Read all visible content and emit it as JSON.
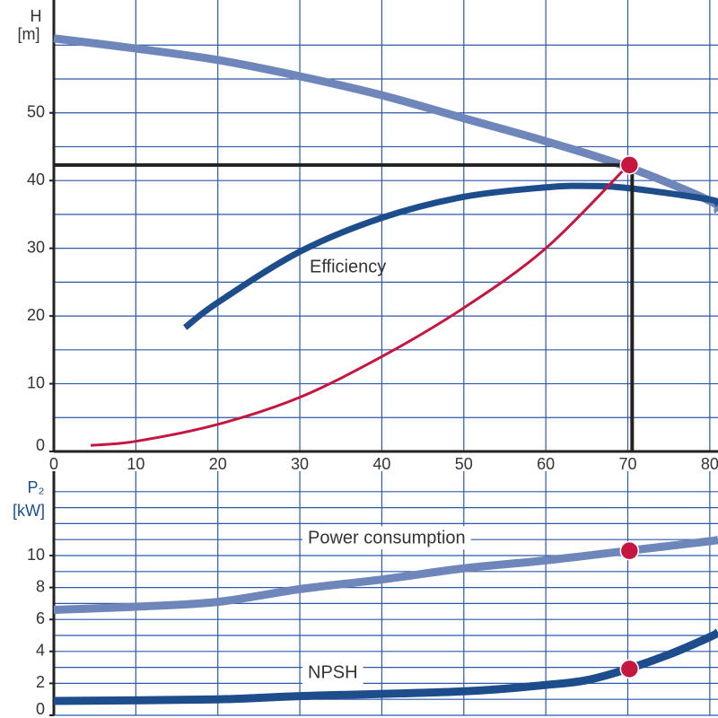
{
  "chart_data": [
    {
      "type": "line",
      "ylabel": "H",
      "yunit": "[m]",
      "xlim": [
        0,
        81
      ],
      "ylim": [
        0,
        66
      ],
      "xticks": [
        0,
        10,
        20,
        30,
        40,
        50,
        60,
        70,
        80
      ],
      "yticks": [
        0,
        10,
        20,
        30,
        40,
        50
      ],
      "minor_yticks": [
        5,
        15,
        25,
        35,
        45,
        55,
        60
      ],
      "grid": true,
      "grid_color": "#2c58a6",
      "series": [
        {
          "color": "#6f86ba",
          "x": [
            0,
            10,
            20,
            30,
            40,
            50,
            60,
            70,
            80,
            81
          ],
          "values": [
            61,
            59.5,
            57.8,
            55.4,
            52.6,
            49.2,
            45.8,
            42,
            37,
            35.5
          ]
        },
        {
          "name": "Efficiency",
          "color": "#1d4d8b",
          "x": [
            16,
            20,
            30,
            40,
            50,
            60,
            65,
            70,
            80,
            81
          ],
          "values": [
            18.3,
            22,
            29.5,
            34.5,
            37.6,
            39,
            39.2,
            38.9,
            37.2,
            36.5
          ]
        },
        {
          "color": "#c4163f",
          "x": [
            4.5,
            10,
            20,
            30,
            40,
            50,
            60,
            70
          ],
          "values": [
            0.9,
            1.5,
            4,
            8,
            14,
            21.2,
            30,
            42.2
          ]
        }
      ],
      "operating_point": {
        "x": 70.2,
        "y": 42.3,
        "color": "#c4163f"
      }
    },
    {
      "type": "line",
      "ylabel": "P₂",
      "yunit": "[kW]",
      "xlim": [
        0,
        81
      ],
      "ylim": [
        0,
        15
      ],
      "yticks": [
        0,
        2,
        4,
        6,
        8,
        10
      ],
      "minor_yticks": [
        1,
        3,
        5,
        7,
        9,
        11,
        12,
        13,
        14
      ],
      "grid": true,
      "grid_color": "#2c58a6",
      "series": [
        {
          "name": "Power consumption",
          "color": "#6f86ba",
          "x": [
            0,
            10,
            20,
            30,
            40,
            50,
            60,
            70,
            80,
            81
          ],
          "values": [
            6.6,
            6.8,
            7.1,
            7.9,
            8.5,
            9.2,
            9.7,
            10.3,
            10.9,
            11
          ]
        },
        {
          "name": "NPSH",
          "color": "#1d4d8b",
          "x": [
            0,
            20,
            30,
            50,
            60,
            65,
            70,
            75,
            80,
            81
          ],
          "values": [
            0.9,
            1.0,
            1.2,
            1.5,
            1.9,
            2.2,
            2.9,
            3.8,
            4.9,
            5.2
          ]
        }
      ],
      "points": [
        {
          "x": 70.2,
          "y": 10.3
        },
        {
          "x": 70.2,
          "y": 2.9
        }
      ],
      "point_color": "#c4163f"
    }
  ]
}
